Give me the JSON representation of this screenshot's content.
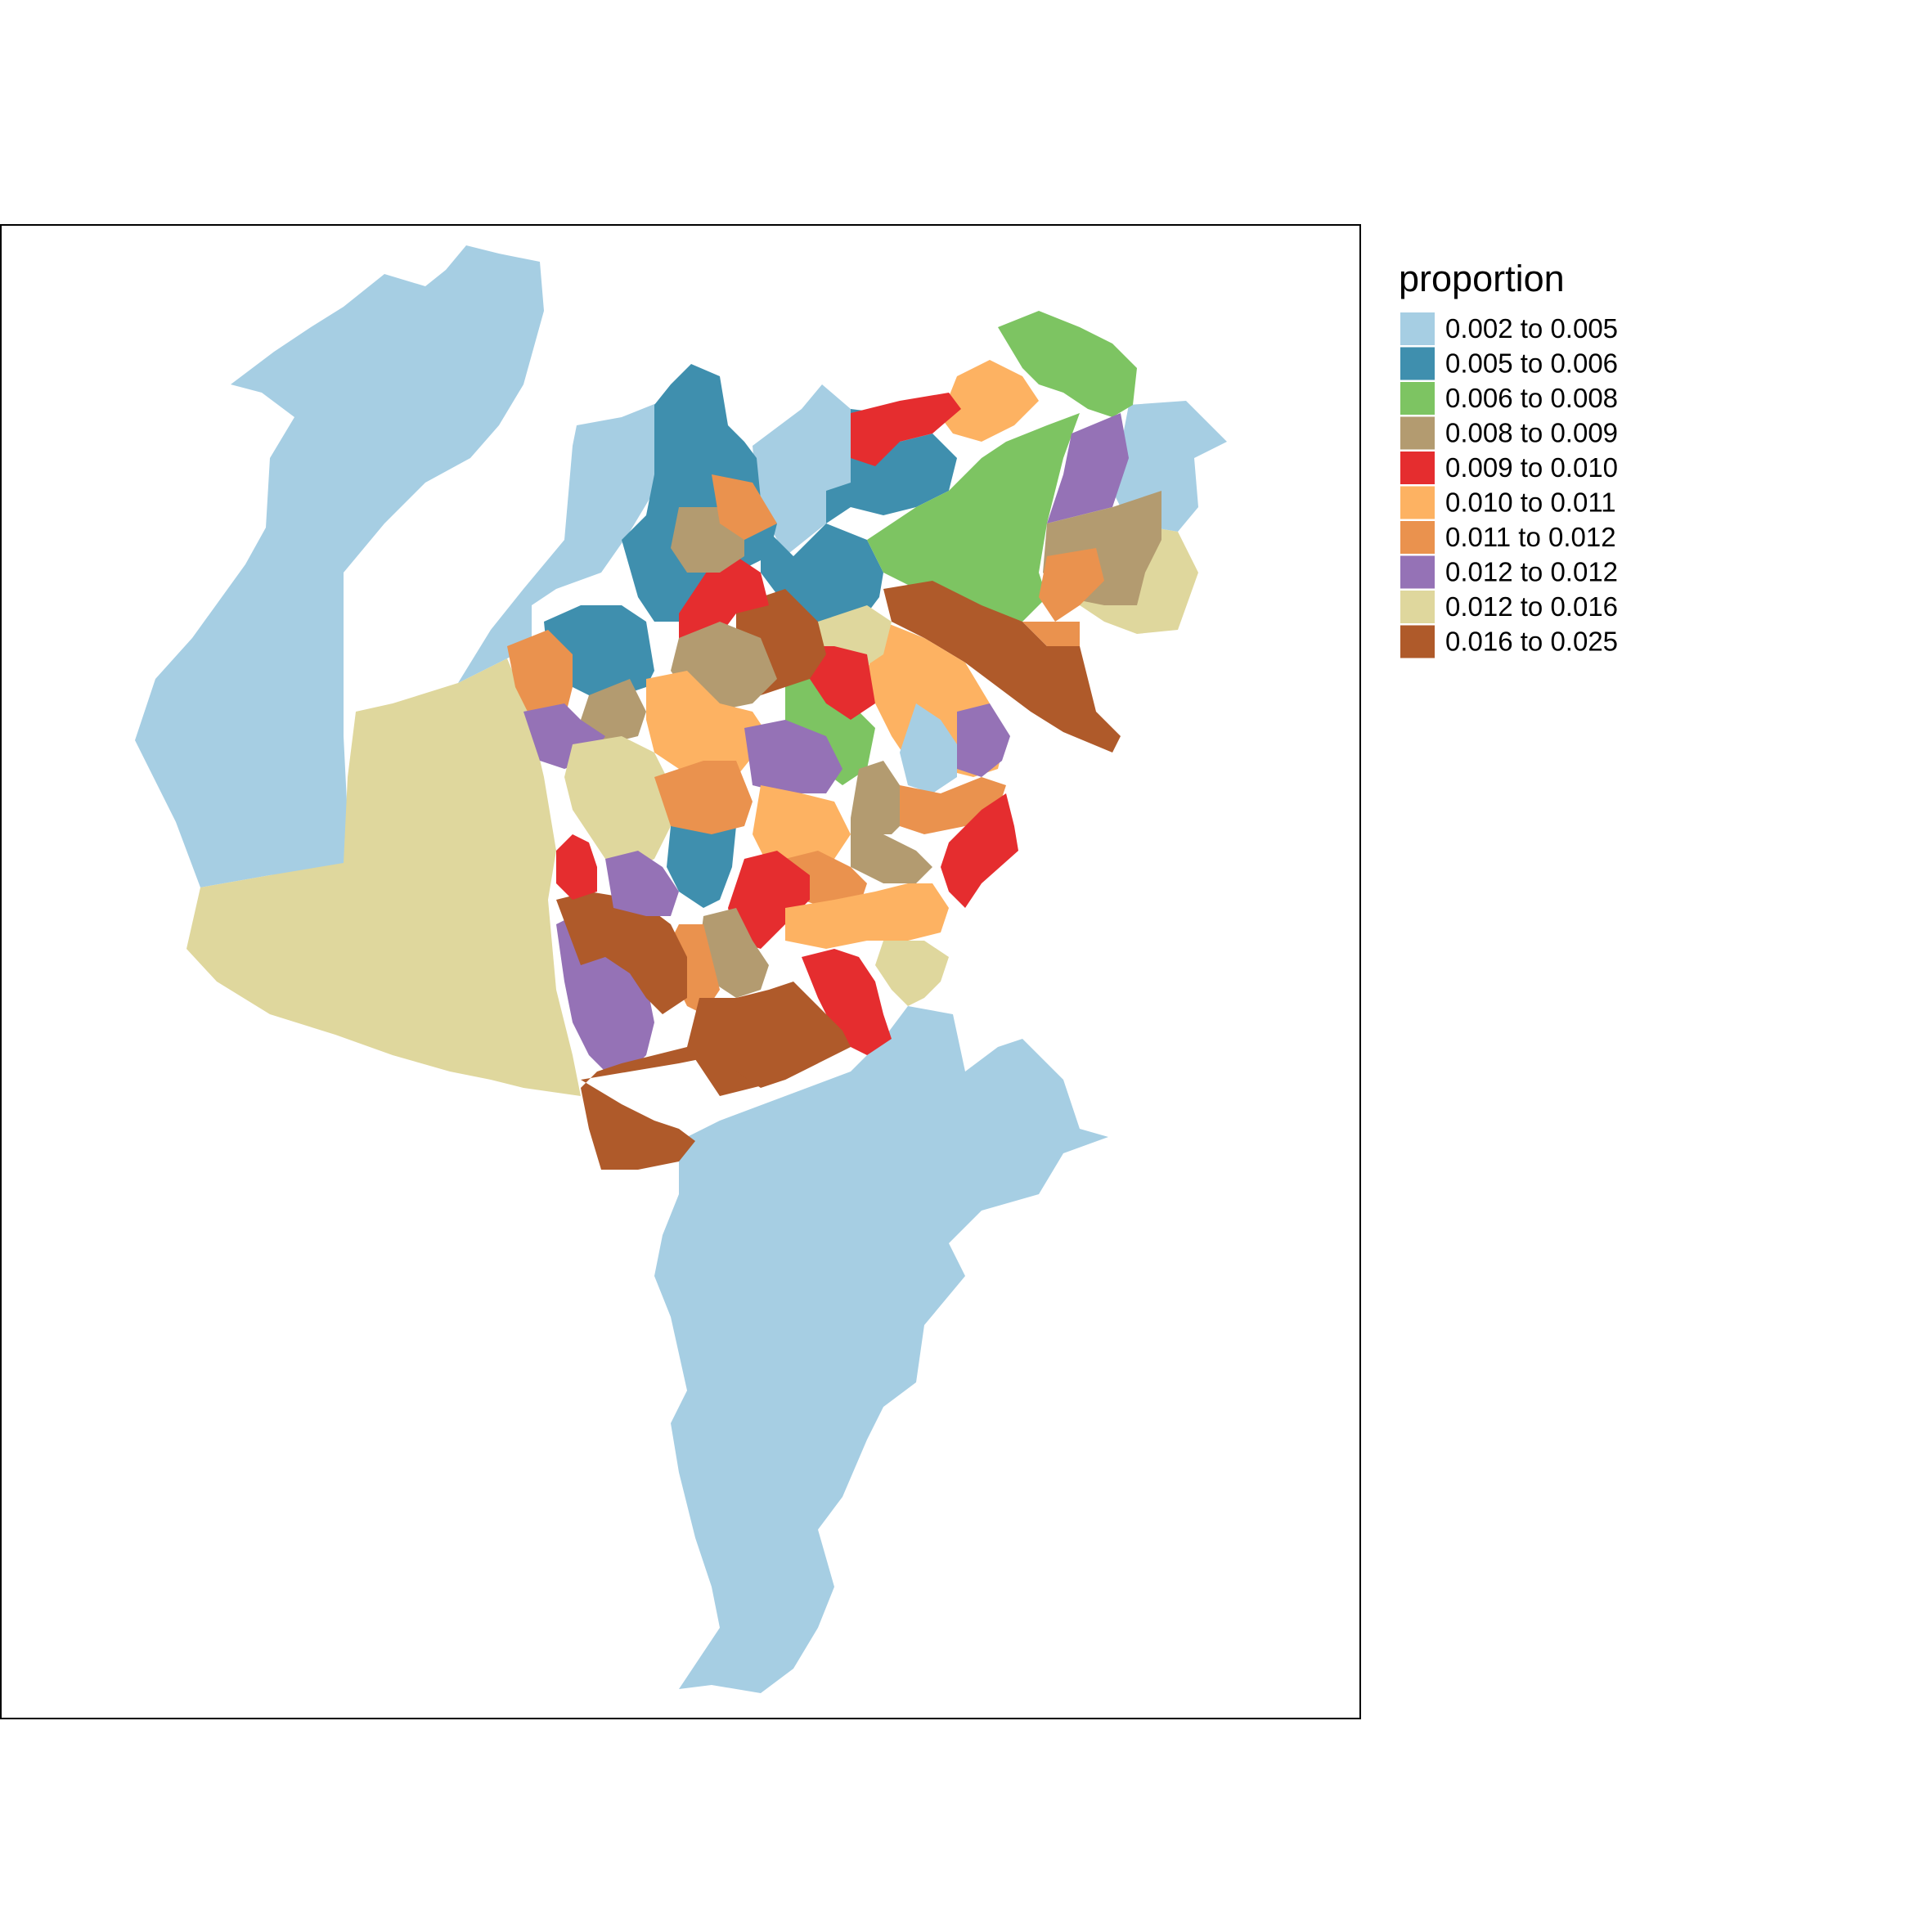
{
  "legend": {
    "title": "proportion",
    "classes": [
      {
        "label": "0.002 to 0.005",
        "color": "#A6CEE3"
      },
      {
        "label": "0.005 to 0.006",
        "color": "#3F8FAE"
      },
      {
        "label": "0.006 to 0.008",
        "color": "#7DC462"
      },
      {
        "label": "0.008 to 0.009",
        "color": "#B39B70"
      },
      {
        "label": "0.009 to 0.010",
        "color": "#E52D2F"
      },
      {
        "label": "0.010 to 0.011",
        "color": "#FDB262"
      },
      {
        "label": "0.011 to 0.012",
        "color": "#EA924E"
      },
      {
        "label": "0.012 to 0.012",
        "color": "#9572B6"
      },
      {
        "label": "0.012 to 0.016",
        "color": "#DFD79D"
      },
      {
        "label": "0.016 to 0.025",
        "color": "#AF5A2A"
      }
    ]
  },
  "colors": {
    "frame": "#000000",
    "background": "#ffffff"
  }
}
